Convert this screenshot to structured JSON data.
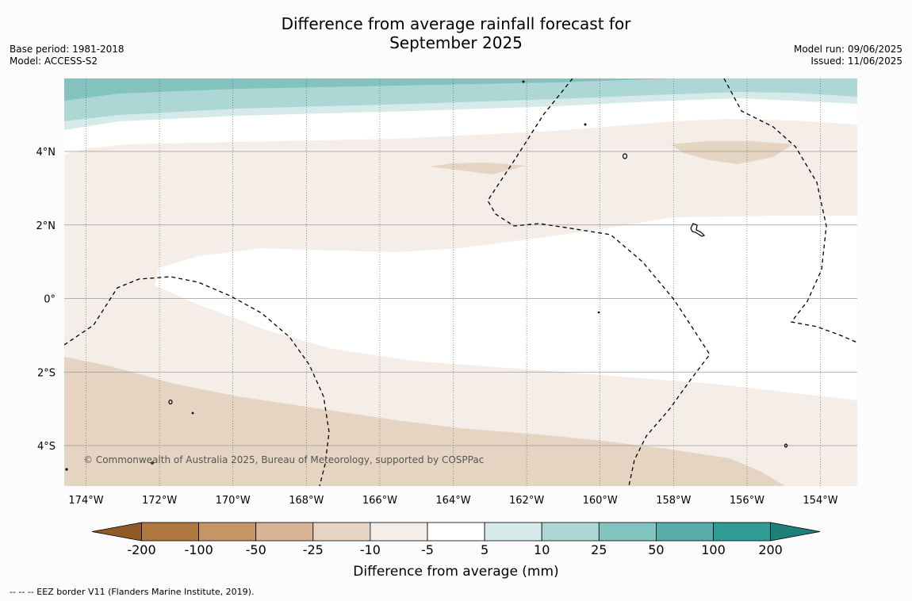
{
  "title": {
    "line1": "Difference from average rainfall forecast for",
    "line2": "September 2025"
  },
  "left_info": {
    "base_period": "Base period: 1981-2018",
    "model": "Model: ACCESS-S2"
  },
  "right_info": {
    "model_run": "Model run: 09/06/2025",
    "issued": "Issued: 11/06/2025"
  },
  "map": {
    "lon_labels": [
      "174°W",
      "172°W",
      "170°W",
      "168°W",
      "166°W",
      "164°W",
      "162°W",
      "160°W",
      "158°W",
      "156°W",
      "154°W"
    ],
    "lat_labels": [
      "4°N",
      "2°N",
      "0°",
      "2°S",
      "4°S"
    ],
    "credit": "© Commonwealth of Australia 2025, Bureau of Meteorology, supported by COSPPac"
  },
  "colorbar": {
    "title": "Difference from average (mm)",
    "tick_labels": [
      "-200",
      "-100",
      "-50",
      "-25",
      "-10",
      "-5",
      "5",
      "10",
      "25",
      "50",
      "100",
      "200"
    ],
    "colors": {
      "below_min": "#8f5a26",
      "bins": [
        "#b07841",
        "#c59467",
        "#d8b494",
        "#e6d4c2",
        "#f5ede7",
        "#ffffff",
        "#d6ebe9",
        "#acd7d5",
        "#82c3c0",
        "#58aeaa",
        "#319c96"
      ],
      "above_max": "#1f7f7b"
    }
  },
  "footnote": "--  --  -- EEZ border V11 (Flanders Marine Institute, 2019)."
}
